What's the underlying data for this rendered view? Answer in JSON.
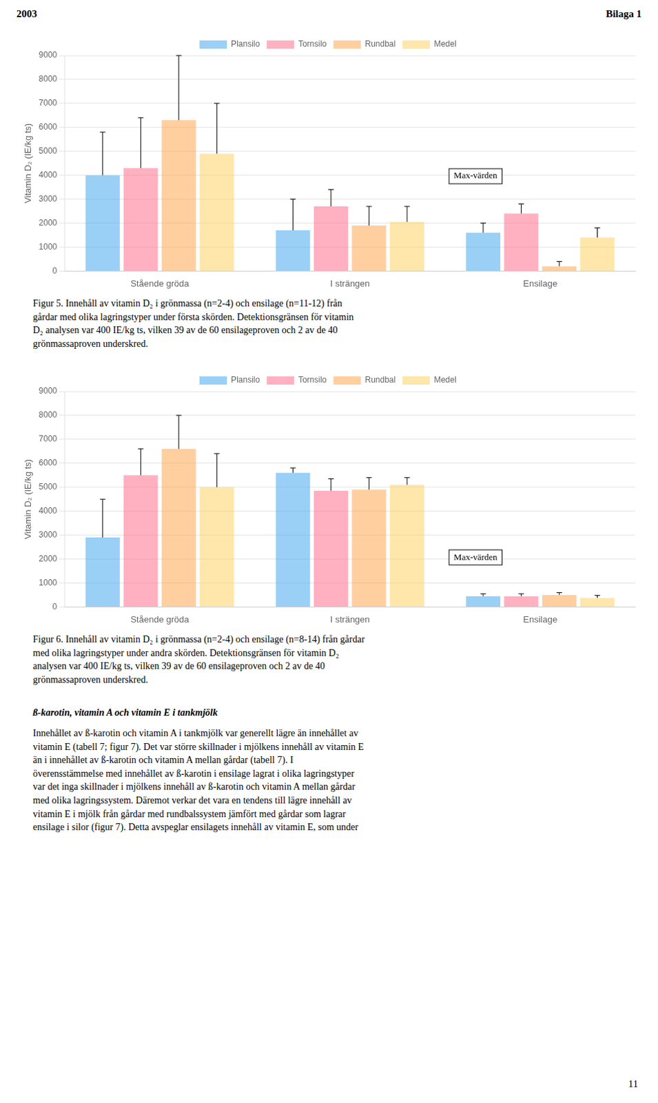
{
  "header": [
    "2003",
    "Bilaga 1"
  ],
  "chart_data": [
    {
      "type": "bar",
      "categories": [
        "Stående gröda",
        "I strängen",
        "Ensilage"
      ],
      "series": [
        {
          "name": "Plansilo",
          "values": [
            4000,
            1700,
            1600
          ],
          "errors_upper": [
            1800,
            1300,
            400
          ]
        },
        {
          "name": "Tornsilo",
          "values": [
            4300,
            2700,
            2400
          ],
          "errors_upper": [
            2100,
            700,
            400
          ]
        },
        {
          "name": "Rundbal",
          "values": [
            6300,
            1900,
            200
          ],
          "errors_upper": [
            2700,
            800,
            200
          ]
        },
        {
          "name": "Medel",
          "values": [
            4900,
            2050,
            1400
          ],
          "errors_upper": [
            2100,
            650,
            400
          ]
        }
      ],
      "y_label": "Vitamin D₂ (IE/kg ts)",
      "ylim": [
        0,
        9000
      ],
      "yticks": [
        0,
        1000,
        2000,
        3000,
        4000,
        5000,
        6000,
        7000,
        8000,
        9000
      ],
      "grid": true,
      "legend": "top",
      "annotations": [
        "Max-värden"
      ],
      "caption": "Figur 5. Innehåll av vitamin D₂ i grönmassa (n=2-4) och ensilage (n=11-12) från\ngårdar med olika lagringstyper under första skörden. Detektionsgränsen för vitamin\nD₂ analysen var 400 IE/kg ts, vilken 39 av de 60 ensilageproven och 2 av de 40\ngrönmassaproven underskred."
    },
    {
      "type": "bar",
      "categories": [
        "Stående gröda",
        "I strängen",
        "Ensilage"
      ],
      "series": [
        {
          "name": "Plansilo",
          "values": [
            2900,
            5600,
            450
          ],
          "errors_upper": [
            1600,
            200,
            100
          ]
        },
        {
          "name": "Tornsilo",
          "values": [
            5500,
            4850,
            450
          ],
          "errors_upper": [
            1100,
            500,
            100
          ]
        },
        {
          "name": "Rundbal",
          "values": [
            6600,
            4900,
            500
          ],
          "errors_upper": [
            1400,
            500,
            100
          ]
        },
        {
          "name": "Medel",
          "values": [
            5000,
            5100,
            380
          ],
          "errors_upper": [
            1400,
            300,
            100
          ]
        }
      ],
      "y_label": "Vitamin D₂ (IE/kg ts)",
      "ylim": [
        0,
        9000
      ],
      "yticks": [
        0,
        1000,
        2000,
        3000,
        4000,
        5000,
        6000,
        7000,
        8000,
        9000
      ],
      "grid": true,
      "legend": "top",
      "annotations": [
        "Max-värden"
      ],
      "caption": "Figur 6. Innehåll av vitamin D₂ i grönmassa (n=2-4) och ensilage (n=8-14) från gårdar\nmed olika lagringstyper under andra skörden. Detektionsgränsen för vitamin D₂\nanalysen var 400 IE/kg ts, vilken 39 av de 60 ensilageproven och 2 av de 40\ngrönmassaproven underskred."
    }
  ],
  "body_title": "ß-karotin, vitamin A och vitamin E i tankmjölk",
  "body_text": "Innehållet av ß-karotin och vitamin A i tankmjölk var generellt lägre än innehållet av\nvitamin E (tabell 7; figur 7). Det var större skillnader i mjölkens innehåll av vitamin E\nän i innehållet av ß-karotin och vitamin A mellan gårdar (tabell 7). I\növerensstämmelse med innehållet av ß-karotin i ensilage lagrat i olika lagringstyper\nvar det inga skillnader i mjölkens innehåll av ß-karotin och vitamin A mellan gårdar\nmed olika lagringssystem. Däremot verkar det vara en tendens till lägre innehåll av\nvitamin E i mjölk från gårdar med rundbalssystem jämfört med gårdar som lagrar\nensilage i silor (figur 7). Detta avspeglar ensilagets innehåll av vitamin E, som under",
  "page_number": "11"
}
